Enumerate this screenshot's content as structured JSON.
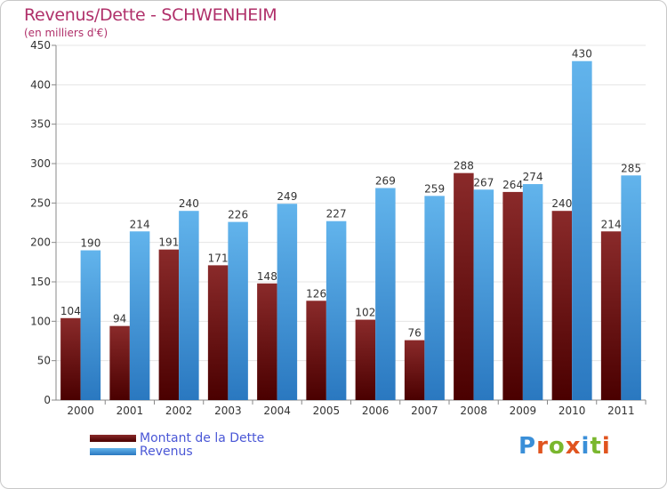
{
  "header": {
    "title": "Revenus/Dette - SCHWENHEIM",
    "subtitle": "(en milliers d'€)"
  },
  "legend": {
    "debt_label": "Montant de la Dette",
    "revenue_label": "Revenus"
  },
  "brand": {
    "letters": [
      "P",
      "r",
      "o",
      "x",
      "i",
      "t",
      "i"
    ],
    "colors": [
      "#3a8fd8",
      "#e0541f",
      "#7ab72e",
      "#e0541f",
      "#3a8fd8",
      "#7ab72e",
      "#e0541f"
    ]
  },
  "colors": {
    "debt": "#7a1e1e",
    "debt_dark": "#4a0000",
    "revenue": "#5aaee8",
    "revenue_dark": "#2a78c0",
    "axis_text": "#333333",
    "grid": "#e4e4e4"
  },
  "chart_data": {
    "type": "bar",
    "categories": [
      "2000",
      "2001",
      "2002",
      "2003",
      "2004",
      "2005",
      "2006",
      "2007",
      "2008",
      "2009",
      "2010",
      "2011"
    ],
    "series": [
      {
        "name": "Montant de la Dette",
        "values": [
          104,
          94,
          191,
          171,
          148,
          126,
          102,
          76,
          288,
          264,
          240,
          214
        ]
      },
      {
        "name": "Revenus",
        "values": [
          190,
          214,
          240,
          226,
          249,
          227,
          269,
          259,
          267,
          274,
          430,
          285
        ]
      }
    ],
    "title": "Revenus/Dette - SCHWENHEIM",
    "ylabel": "(en milliers d'€)",
    "ylim": [
      0,
      450
    ],
    "yticks": [
      0,
      50,
      100,
      150,
      200,
      250,
      300,
      350,
      400,
      450
    ],
    "grid": true,
    "legend_position": "bottom-left"
  }
}
